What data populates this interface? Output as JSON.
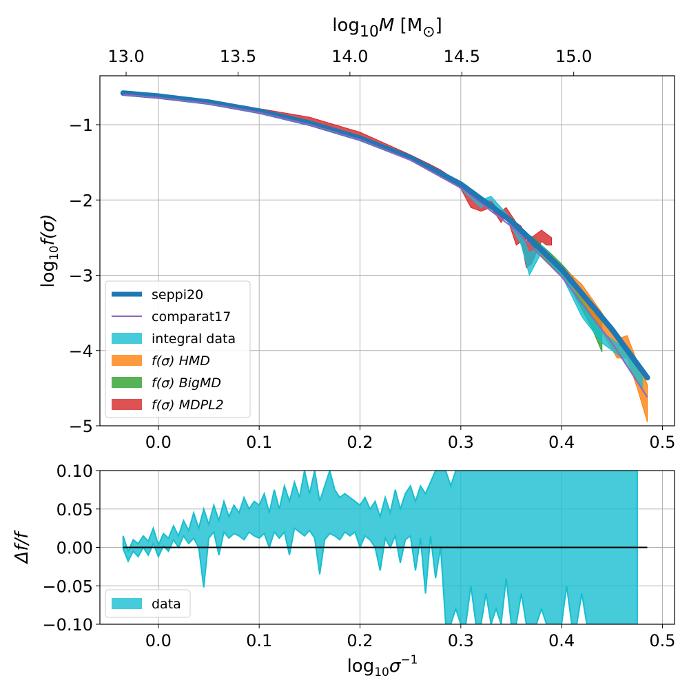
{
  "chart_data": [
    {
      "type": "line",
      "panel": "main",
      "ylabel_parts": {
        "pre": "log",
        "sub": "10",
        "post": "f(σ)"
      },
      "top_xlabel_parts": {
        "pre": "log",
        "sub": "10",
        "italic": "M",
        "post": " [M",
        "postsub": "⊙",
        "close": "]"
      },
      "xlim": [
        -0.058,
        0.512
      ],
      "ylim": [
        -5.0,
        -0.35
      ],
      "x_ticks": [
        0.0,
        0.1,
        0.2,
        0.3,
        0.4,
        0.5
      ],
      "x_tick_labels": [
        "0.0",
        "0.1",
        "0.2",
        "0.3",
        "0.4",
        "0.5"
      ],
      "y_ticks": [
        -1,
        -2,
        -3,
        -4,
        -5
      ],
      "y_tick_labels": [
        "−1",
        "−2",
        "−3",
        "−4",
        "−5"
      ],
      "top_ticks_x": [
        -0.032,
        0.079,
        0.19,
        0.301,
        0.412,
        0.523
      ],
      "top_tick_labels": [
        "13.0",
        "13.5",
        "14.0",
        "14.5",
        "15.0"
      ],
      "grid": true,
      "legend_position": "lower-left",
      "legend": [
        {
          "label": "seppi20",
          "kind": "line",
          "color": "#1f77b4"
        },
        {
          "label": "comparat17",
          "kind": "line",
          "color": "#9467bd"
        },
        {
          "label": "integral data",
          "kind": "patch",
          "color": "#17becf"
        },
        {
          "label": "f(σ) HMD",
          "kind": "patch",
          "color": "#ff7f0e"
        },
        {
          "label": "f(σ) BigMD",
          "kind": "patch",
          "color": "#2ca02c"
        },
        {
          "label": "f(σ) MDPL2",
          "kind": "patch",
          "color": "#d62728"
        }
      ],
      "series": [
        {
          "name": "seppi20",
          "color": "#1f77b4",
          "x": [
            -0.035,
            0.0,
            0.05,
            0.1,
            0.15,
            0.2,
            0.25,
            0.3,
            0.35,
            0.4,
            0.45,
            0.485
          ],
          "y": [
            -0.58,
            -0.62,
            -0.7,
            -0.82,
            -0.98,
            -1.18,
            -1.44,
            -1.79,
            -2.28,
            -2.92,
            -3.72,
            -4.36
          ]
        },
        {
          "name": "comparat17",
          "color": "#9467bd",
          "x": [
            -0.035,
            0.0,
            0.05,
            0.1,
            0.15,
            0.2,
            0.25,
            0.3,
            0.35,
            0.4,
            0.45,
            0.485
          ],
          "y": [
            -0.6,
            -0.64,
            -0.72,
            -0.84,
            -1.0,
            -1.2,
            -1.47,
            -1.84,
            -2.35,
            -3.02,
            -3.9,
            -4.62
          ]
        },
        {
          "name": "integral data",
          "color": "#17becf",
          "x": [
            0.3,
            0.32,
            0.33,
            0.35,
            0.36,
            0.368,
            0.38,
            0.4,
            0.42,
            0.44,
            0.46,
            0.47,
            0.48
          ],
          "lower": [
            -1.85,
            -2.1,
            -2.0,
            -2.35,
            -2.6,
            -3.0,
            -2.7,
            -3.0,
            -3.55,
            -3.9,
            -4.1,
            -4.3,
            -4.5
          ],
          "upper": [
            -1.78,
            -2.0,
            -1.95,
            -2.25,
            -2.45,
            -2.7,
            -2.6,
            -2.9,
            -3.4,
            -3.75,
            -3.95,
            -4.15,
            -4.35
          ]
        },
        {
          "name": "f(σ) HMD",
          "color": "#ff7f0e",
          "x": [
            0.4,
            0.42,
            0.44,
            0.455,
            0.465,
            0.475,
            0.485
          ],
          "lower": [
            -3.0,
            -3.3,
            -3.75,
            -4.1,
            -4.1,
            -4.5,
            -4.95
          ],
          "upper": [
            -2.88,
            -3.12,
            -3.5,
            -3.85,
            -3.8,
            -4.15,
            -4.45
          ]
        },
        {
          "name": "f(σ) BigMD",
          "color": "#2ca02c",
          "x": [
            0.37,
            0.38,
            0.39,
            0.4,
            0.41,
            0.42,
            0.43,
            0.44
          ],
          "lower": [
            -2.62,
            -2.75,
            -2.88,
            -3.02,
            -3.2,
            -3.45,
            -3.7,
            -4.02
          ],
          "upper": [
            -2.48,
            -2.6,
            -2.72,
            -2.85,
            -3.0,
            -3.25,
            -3.48,
            -3.6
          ]
        },
        {
          "name": "f(σ) MDPL2",
          "color": "#d62728",
          "x": [
            0.08,
            0.15,
            0.2,
            0.25,
            0.27,
            0.28,
            0.3,
            0.31,
            0.32,
            0.33,
            0.34,
            0.345,
            0.355,
            0.36,
            0.365,
            0.37,
            0.38,
            0.385,
            0.39
          ],
          "lower": [
            -0.78,
            -0.97,
            -1.19,
            -1.47,
            -1.58,
            -1.67,
            -1.85,
            -2.1,
            -2.15,
            -2.1,
            -2.3,
            -2.2,
            -2.6,
            -2.55,
            -2.9,
            -2.85,
            -2.55,
            -2.6,
            -2.6
          ],
          "upper": [
            -0.74,
            -0.9,
            -1.1,
            -1.4,
            -1.53,
            -1.6,
            -1.78,
            -1.9,
            -1.98,
            -2.02,
            -2.15,
            -2.1,
            -2.3,
            -2.35,
            -2.55,
            -2.5,
            -2.4,
            -2.45,
            -2.5
          ]
        }
      ]
    },
    {
      "type": "area",
      "panel": "residual",
      "xlabel_parts": {
        "pre": "log",
        "sub": "10",
        "italic": "σ",
        "sup": "−1"
      },
      "ylabel": "Δf/f",
      "xlim": [
        -0.058,
        0.512
      ],
      "ylim": [
        -0.1,
        0.1
      ],
      "x_ticks": [
        0.0,
        0.1,
        0.2,
        0.3,
        0.4,
        0.5
      ],
      "x_tick_labels": [
        "0.0",
        "0.1",
        "0.2",
        "0.3",
        "0.4",
        "0.5"
      ],
      "y_ticks": [
        0.1,
        0.05,
        0.0,
        -0.05,
        -0.1
      ],
      "y_tick_labels": [
        "0.10",
        "0.05",
        "0.00",
        "−0.05",
        "−0.10"
      ],
      "grid": true,
      "legend_position": "lower-left",
      "legend": [
        {
          "label": "data",
          "kind": "patch",
          "color": "#17becf"
        }
      ],
      "zero_line": {
        "x": [
          -0.035,
          0.485
        ],
        "y": 0.0,
        "color": "#000000"
      },
      "series": [
        {
          "name": "data",
          "color": "#17becf",
          "x": [
            -0.035,
            -0.03,
            -0.025,
            -0.02,
            -0.015,
            -0.01,
            -0.005,
            0.0,
            0.005,
            0.01,
            0.015,
            0.02,
            0.025,
            0.03,
            0.035,
            0.04,
            0.045,
            0.05,
            0.055,
            0.06,
            0.065,
            0.07,
            0.075,
            0.08,
            0.085,
            0.09,
            0.095,
            0.1,
            0.105,
            0.11,
            0.115,
            0.12,
            0.125,
            0.13,
            0.135,
            0.14,
            0.145,
            0.15,
            0.155,
            0.16,
            0.165,
            0.17,
            0.175,
            0.18,
            0.185,
            0.19,
            0.195,
            0.2,
            0.205,
            0.21,
            0.215,
            0.22,
            0.225,
            0.23,
            0.235,
            0.24,
            0.245,
            0.25,
            0.255,
            0.26,
            0.265,
            0.27,
            0.275,
            0.28,
            0.285,
            0.29,
            0.295,
            0.3,
            0.305,
            0.31,
            0.315,
            0.32,
            0.325,
            0.33,
            0.335,
            0.34,
            0.345,
            0.35,
            0.355,
            0.36,
            0.365,
            0.37,
            0.375,
            0.38,
            0.385,
            0.39,
            0.395,
            0.4,
            0.405,
            0.41,
            0.415,
            0.42,
            0.425,
            0.43,
            0.435,
            0.44,
            0.445,
            0.45,
            0.455,
            0.46,
            0.465,
            0.47,
            0.475
          ],
          "lower": [
            -0.002,
            -0.018,
            -0.005,
            -0.012,
            0.0,
            -0.01,
            0.005,
            -0.012,
            0.002,
            -0.005,
            0.01,
            0.0,
            0.015,
            0.005,
            0.012,
            0.0,
            -0.052,
            0.012,
            0.02,
            -0.01,
            0.02,
            0.012,
            0.018,
            0.015,
            0.01,
            0.02,
            0.015,
            0.012,
            0.018,
            0.0,
            0.02,
            0.012,
            0.02,
            -0.01,
            0.025,
            0.02,
            0.015,
            0.022,
            0.012,
            -0.035,
            0.01,
            0.018,
            0.015,
            0.01,
            0.02,
            0.015,
            0.02,
            0.0,
            0.015,
            0.01,
            0.0,
            -0.03,
            0.012,
            0.0,
            0.015,
            -0.02,
            0.01,
            0.015,
            -0.03,
            0.012,
            -0.06,
            0.015,
            -0.04,
            0.0,
            -0.1,
            -0.1,
            -0.08,
            -0.1,
            -0.1,
            -0.05,
            -0.1,
            -0.1,
            -0.06,
            -0.1,
            -0.08,
            -0.1,
            -0.04,
            -0.1,
            -0.1,
            -0.06,
            -0.1,
            -0.1,
            -0.1,
            -0.08,
            -0.1,
            -0.1,
            -0.1,
            -0.1,
            -0.05,
            -0.1,
            -0.1,
            -0.06,
            -0.1,
            -0.1,
            -0.1,
            -0.1,
            -0.1,
            -0.1,
            -0.1,
            -0.1,
            -0.1,
            -0.1,
            -0.1
          ],
          "upper": [
            0.015,
            -0.005,
            0.01,
            0.005,
            0.015,
            0.008,
            0.025,
            0.003,
            0.018,
            0.012,
            0.028,
            0.015,
            0.035,
            0.022,
            0.045,
            0.025,
            0.05,
            0.03,
            0.055,
            0.035,
            0.06,
            0.04,
            0.055,
            0.045,
            0.065,
            0.05,
            0.06,
            0.055,
            0.07,
            0.045,
            0.075,
            0.05,
            0.08,
            0.06,
            0.085,
            0.065,
            0.1,
            0.07,
            0.1,
            0.06,
            0.08,
            0.1,
            0.075,
            0.065,
            0.07,
            0.065,
            0.06,
            0.055,
            0.065,
            0.05,
            0.06,
            0.04,
            0.065,
            0.045,
            0.075,
            0.05,
            0.07,
            0.08,
            0.06,
            0.08,
            0.07,
            0.085,
            0.1,
            0.1,
            0.1,
            0.08,
            0.1,
            0.1,
            0.1,
            0.1,
            0.1,
            0.1,
            0.1,
            0.1,
            0.1,
            0.1,
            0.1,
            0.1,
            0.1,
            0.1,
            0.1,
            0.1,
            0.1,
            0.1,
            0.1,
            0.1,
            0.1,
            0.1,
            0.1,
            0.1,
            0.1,
            0.1,
            0.1,
            0.1,
            0.1,
            0.1,
            0.1,
            0.1,
            0.1,
            0.1,
            0.1,
            0.1,
            0.1
          ]
        }
      ]
    }
  ]
}
